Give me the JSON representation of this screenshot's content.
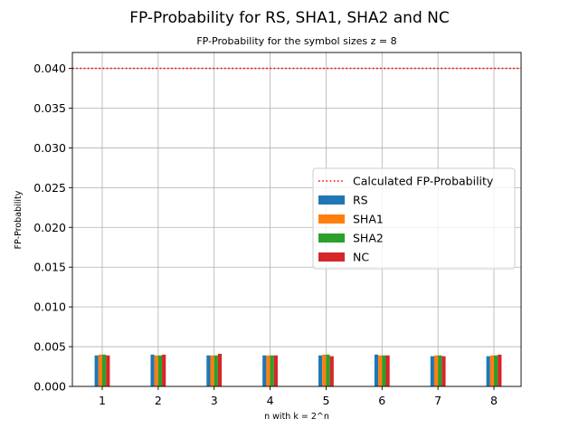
{
  "chart_data": {
    "type": "bar",
    "title": "FP-Probability for RS, SHA1, SHA2 and NC",
    "subtitle": "FP-Probability for the symbol sizes z = 8",
    "xlabel": "n with k = 2^n",
    "ylabel": "FP-Probability",
    "categories": [
      "1",
      "2",
      "3",
      "4",
      "5",
      "6",
      "7",
      "8"
    ],
    "ylim": [
      0,
      0.042
    ],
    "yticks": [
      0.0,
      0.005,
      0.01,
      0.015,
      0.02,
      0.025,
      0.03,
      0.035,
      0.04
    ],
    "ytick_labels": [
      "0.000",
      "0.005",
      "0.010",
      "0.015",
      "0.020",
      "0.025",
      "0.030",
      "0.035",
      "0.040"
    ],
    "grid": true,
    "legend_position": "center-right",
    "reference_line": {
      "name": "Calculated FP-Probability",
      "value": 0.04,
      "color": "#ff0000",
      "style": "dotted"
    },
    "series": [
      {
        "name": "RS",
        "color": "#1f77b4",
        "values": [
          0.0039,
          0.004,
          0.0039,
          0.0039,
          0.0039,
          0.004,
          0.0038,
          0.0038
        ]
      },
      {
        "name": "SHA1",
        "color": "#ff7f0e",
        "values": [
          0.004,
          0.0039,
          0.0039,
          0.0039,
          0.004,
          0.0039,
          0.0039,
          0.0039
        ]
      },
      {
        "name": "SHA2",
        "color": "#2ca02c",
        "values": [
          0.004,
          0.0039,
          0.0039,
          0.0039,
          0.004,
          0.0039,
          0.0039,
          0.0039
        ]
      },
      {
        "name": "NC",
        "color": "#d62728",
        "values": [
          0.0039,
          0.004,
          0.0041,
          0.0039,
          0.0038,
          0.0039,
          0.0038,
          0.004
        ]
      }
    ]
  }
}
